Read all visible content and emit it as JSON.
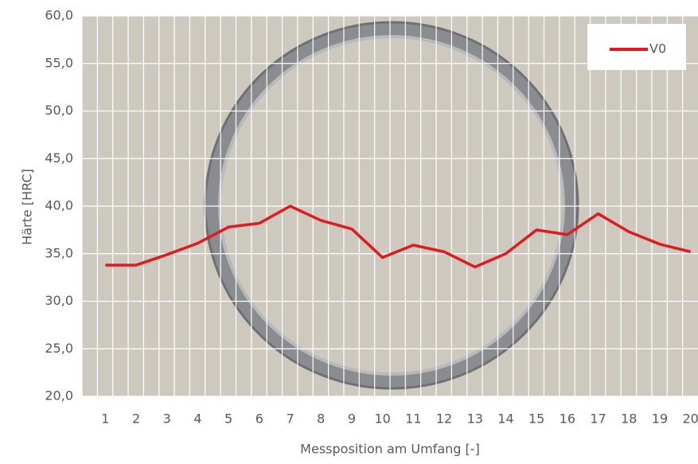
{
  "chart_data": {
    "type": "line",
    "x_label": "Messposition am Umfang [-]",
    "y_label": "Härte [HRC]",
    "categories": [
      "1",
      "2",
      "3",
      "4",
      "5",
      "6",
      "7",
      "8",
      "9",
      "10",
      "11",
      "12",
      "13",
      "14",
      "15",
      "16",
      "17",
      "18",
      "19",
      "20"
    ],
    "series": [
      {
        "name": "V0",
        "color": "#e31a1c",
        "values": [
          33.8,
          33.8,
          34.9,
          36.1,
          37.8,
          38.2,
          40.0,
          38.5,
          37.6,
          34.6,
          35.9,
          35.2,
          33.6,
          35.0,
          37.5,
          37.0,
          39.2,
          37.3,
          36.0,
          35.2
        ]
      }
    ],
    "ylim": [
      20,
      60
    ],
    "yticks": [
      {
        "value": 20,
        "label": "20,0"
      },
      {
        "value": 25,
        "label": "25,0"
      },
      {
        "value": 30,
        "label": "30,0"
      },
      {
        "value": 35,
        "label": "35,0"
      },
      {
        "value": 40,
        "label": "40,0"
      },
      {
        "value": 45,
        "label": "45,0"
      },
      {
        "value": 50,
        "label": "50,0"
      },
      {
        "value": 55,
        "label": "55,0"
      },
      {
        "value": 60,
        "label": "60,0"
      }
    ],
    "grid": true,
    "legend": "top-right"
  }
}
